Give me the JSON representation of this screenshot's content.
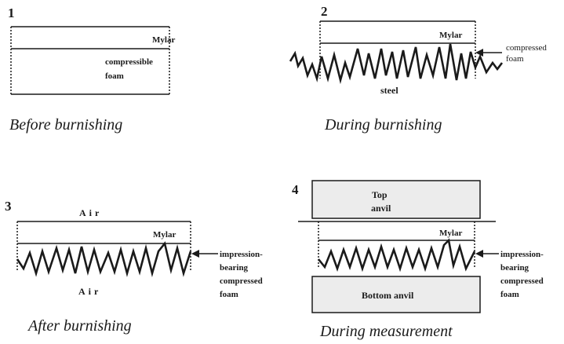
{
  "panels": [
    {
      "number": "1",
      "caption": "Before burnishing",
      "labels": {
        "mylar": "Mylar",
        "foam_line1": "compressible",
        "foam_line2": "foam"
      }
    },
    {
      "number": "2",
      "caption": "During burnishing",
      "labels": {
        "mylar": "Mylar",
        "substrate": "steel",
        "side_line1": "compressed",
        "side_line2": "foam"
      }
    },
    {
      "number": "3",
      "caption": "After burnishing",
      "labels": {
        "air_top": "Air",
        "mylar": "Mylar",
        "air_bottom": "Air",
        "side_line1": "impression-",
        "side_line2": "bearing",
        "side_line3": "compressed",
        "side_line4": "foam"
      }
    },
    {
      "number": "4",
      "caption": "During measurement",
      "labels": {
        "top_anvil_line1": "Top",
        "top_anvil_line2": "anvil",
        "mylar": "Mylar",
        "bottom_anvil": "Bottom anvil",
        "side_line1": "impression-",
        "side_line2": "bearing",
        "side_line3": "compressed",
        "side_line4": "foam"
      }
    }
  ],
  "colors": {
    "ink": "#1a1a1a",
    "anvil_fill": "#ececec",
    "background": "#ffffff"
  }
}
